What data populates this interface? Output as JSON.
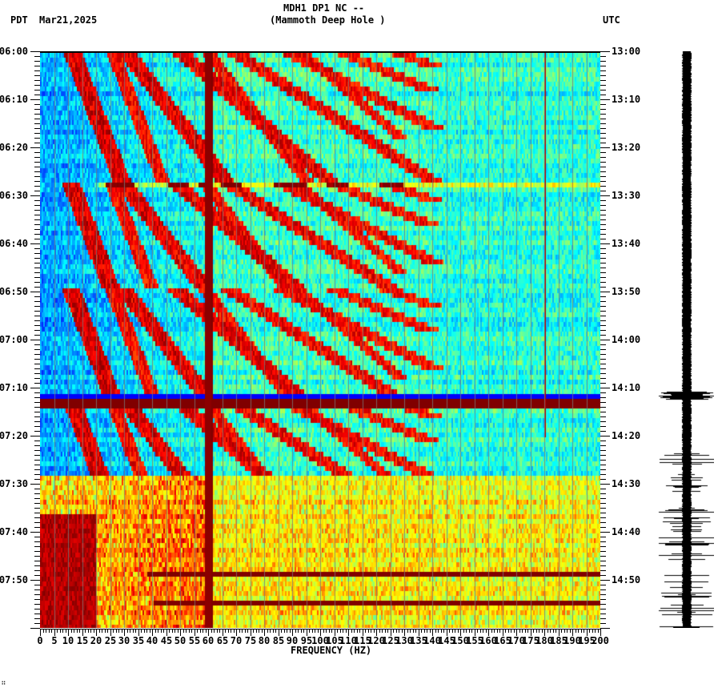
{
  "header": {
    "station_line": "MDH1 DP1 NC --",
    "station_name": "(Mammoth Deep Hole )",
    "left_tz": "PDT",
    "date": "Mar21,2025",
    "right_tz": "UTC"
  },
  "footer": {
    "mark": "∷"
  },
  "chart_data": {
    "type": "heatmap",
    "title": "MDH1 DP1 NC -- (Mammoth Deep Hole )",
    "subtitle": "Spectrogram with seismogram trace",
    "xlabel": "FREQUENCY (HZ)",
    "ylabel_left": "PDT",
    "ylabel_right": "UTC",
    "date": "Mar21,2025",
    "xlim": [
      0,
      200
    ],
    "x_ticks": [
      0,
      5,
      10,
      15,
      20,
      25,
      30,
      35,
      40,
      45,
      50,
      55,
      60,
      65,
      70,
      75,
      80,
      85,
      90,
      95,
      100,
      105,
      110,
      115,
      120,
      125,
      130,
      135,
      140,
      145,
      150,
      155,
      160,
      165,
      170,
      175,
      180,
      185,
      190,
      195,
      200
    ],
    "y_ticks_left": [
      "06:00",
      "06:10",
      "06:20",
      "06:30",
      "06:40",
      "06:50",
      "07:00",
      "07:10",
      "07:20",
      "07:30",
      "07:40",
      "07:50"
    ],
    "y_ticks_right": [
      "13:00",
      "13:10",
      "13:20",
      "13:30",
      "13:40",
      "13:50",
      "14:00",
      "14:10",
      "14:20",
      "14:30",
      "14:40",
      "14:50"
    ],
    "time_range_minutes": 120,
    "colormap": "jet",
    "features": [
      {
        "type": "persistent_line",
        "frequency_hz": 60,
        "color": "dark red"
      },
      {
        "type": "persistent_line",
        "frequency_hz": 180,
        "color": "dark red",
        "note": "weak"
      },
      {
        "type": "gliding_tremor_harmonics",
        "description": "curved harmonic bands sweeping upward in frequency, repeating roughly every 20 minutes",
        "restarts_pdt": [
          "06:27",
          "06:49",
          "07:12"
        ]
      },
      {
        "type": "broadband_dropout",
        "time_pdt": "07:11",
        "color": "blue"
      },
      {
        "type": "broadband_high_energy",
        "time_pdt": "07:12",
        "color": "dark red"
      },
      {
        "type": "broadband_noise_increase",
        "start_pdt": "07:28",
        "end_pdt": "07:59"
      }
    ],
    "seismogram": {
      "position": "right",
      "quiet_until_pdt": "07:12",
      "event_pdt": "07:12",
      "increased_amplitude_after_pdt": "07:20"
    }
  }
}
